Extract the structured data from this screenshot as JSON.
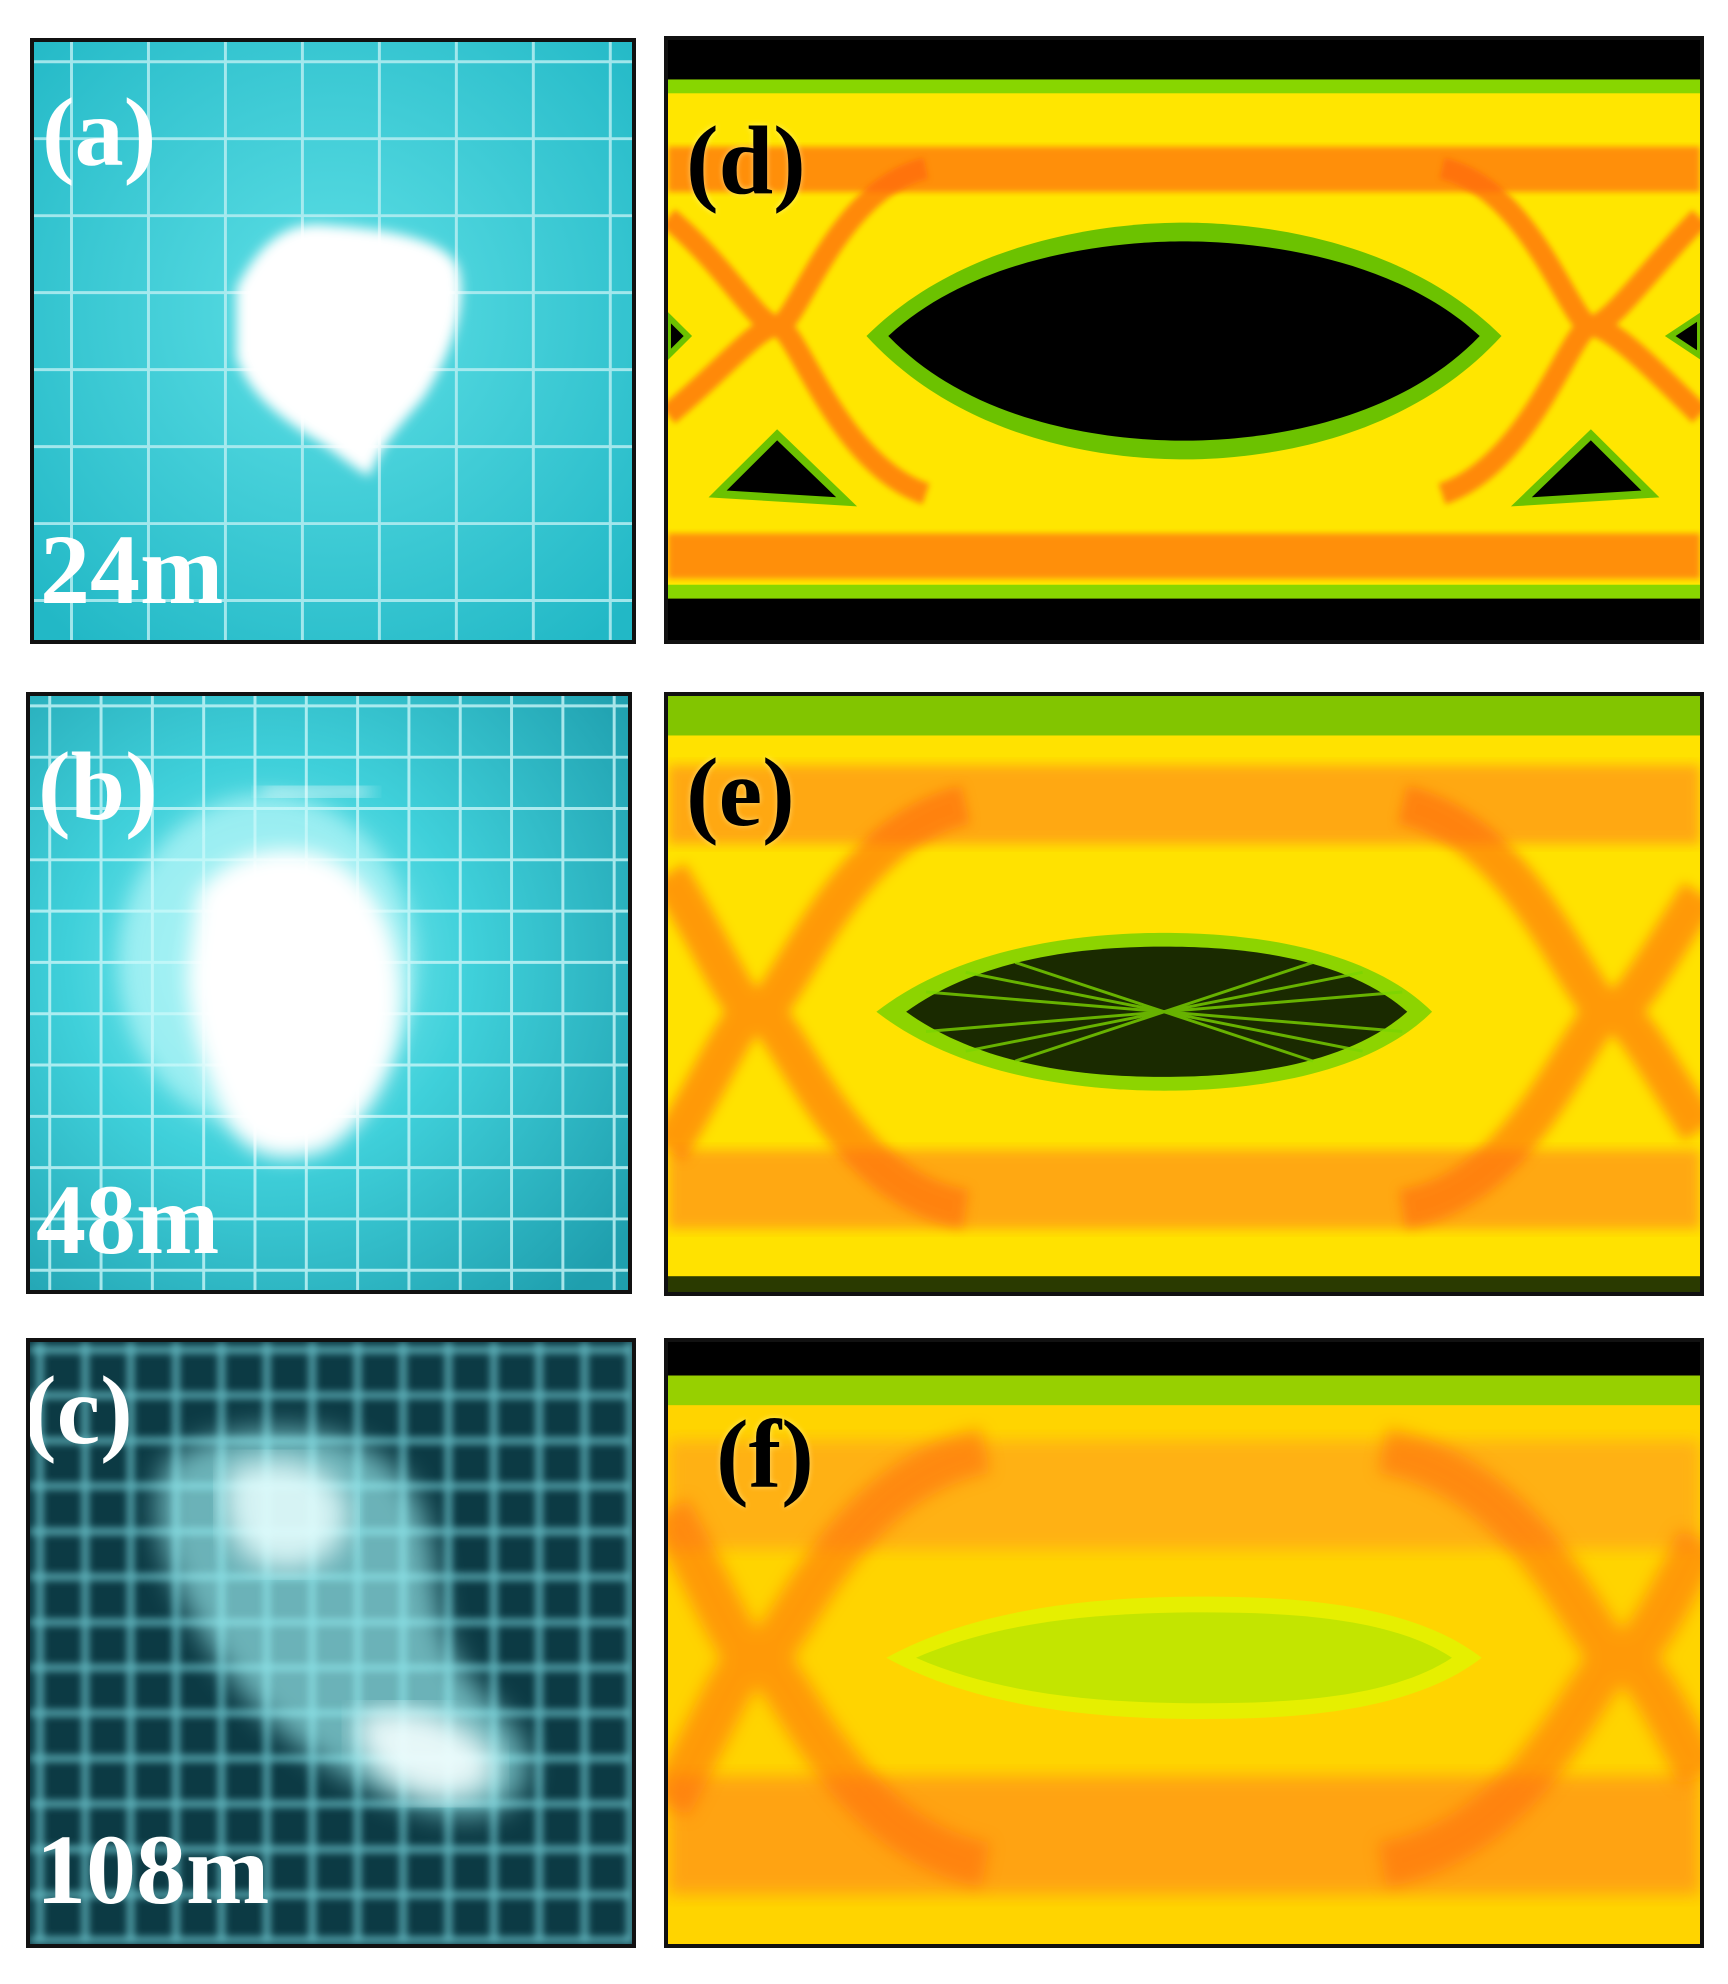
{
  "panels": [
    {
      "id": "a",
      "label": "(a)",
      "distance": "24m",
      "kind": "camera-image"
    },
    {
      "id": "b",
      "label": "(b)",
      "distance": "48m",
      "kind": "camera-image"
    },
    {
      "id": "c",
      "label": "(c)",
      "distance": "108m",
      "kind": "camera-image"
    },
    {
      "id": "d",
      "label": "(d)",
      "kind": "eye-diagram",
      "eye_opening": "wide open"
    },
    {
      "id": "e",
      "label": "(e)",
      "kind": "eye-diagram",
      "eye_opening": "partially closed"
    },
    {
      "id": "f",
      "label": "(f)",
      "kind": "eye-diagram",
      "eye_opening": "nearly closed"
    }
  ],
  "colors": {
    "water": "#2fc9d3",
    "grid": "#bff4f6",
    "spot": "#ffffff",
    "eye_yellow": "#ffe600",
    "eye_orange": "#ff7a10",
    "eye_green": "#7bd400",
    "background": "#000000"
  }
}
